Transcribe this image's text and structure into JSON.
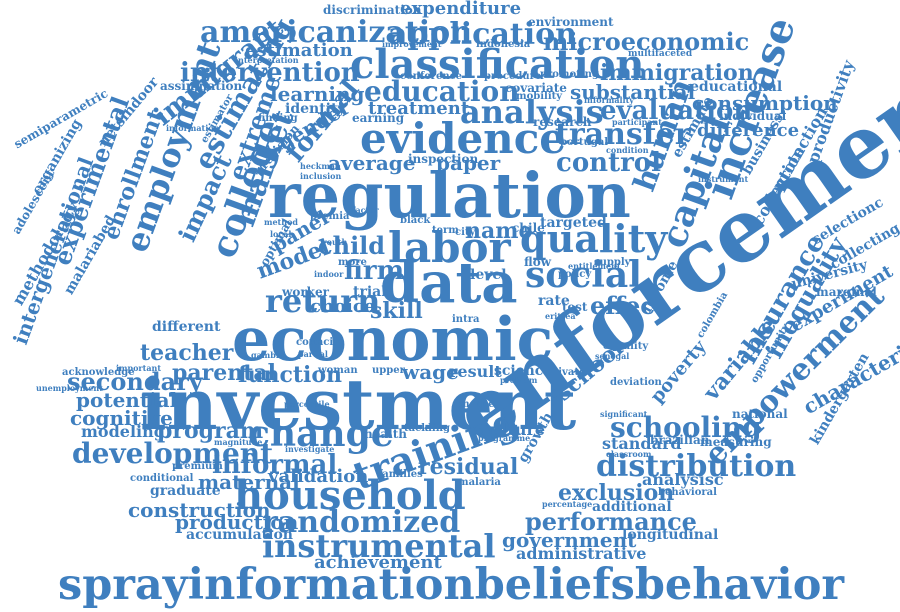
{
  "word_cloud": {
    "color": "#3f7fbf",
    "words": [
      "discrimination",
      "expenditure",
      "environment",
      "americanization",
      "application",
      "indonesia",
      "improvement",
      "multifaceted",
      "microeconomic",
      "classification",
      "estimation",
      "interpretation",
      "intervention",
      "immigration",
      "conference",
      "procedure",
      "promoting",
      "assimilation",
      "education",
      "learning",
      "substantial",
      "educational",
      "consumption",
      "evaluation",
      "immigrant",
      "analysis",
      "treatment",
      "identity",
      "earning",
      "covariate",
      "mobility",
      "informality",
      "individual",
      "finding",
      "research",
      "semiparametric",
      "netsindoor",
      "information",
      "evidence",
      "transfer",
      "difference",
      "estimating",
      "gender",
      "formal",
      "organizing",
      "participant",
      "portugal",
      "condition",
      "productivity",
      "control",
      "average",
      "paper",
      "human",
      "estimate",
      "business",
      "precision",
      "estimator",
      "heckman",
      "extreme",
      "inclusion",
      "regulation",
      "inspection",
      "instrument",
      "protection",
      "adolescent",
      "enrollment",
      "employment",
      "experimental",
      "college",
      "market",
      "impact",
      "premia",
      "factor",
      "capital",
      "increase",
      "collection",
      "child",
      "labor",
      "quality",
      "targeted",
      "selectionc",
      "methodology",
      "intergenerational",
      "method",
      "local",
      "panel",
      "name",
      "chile",
      "collecting",
      "term",
      "city",
      "black",
      "optimal",
      "model",
      "youth",
      "flow",
      "supply",
      "university",
      "malariabed",
      "firm",
      "data",
      "social",
      "entitlement",
      "marginal",
      "return",
      "trial",
      "level",
      "policy",
      "worker",
      "indoor",
      "more",
      "experiment",
      "rate",
      "income",
      "test",
      "insurance",
      "effect",
      "inequality",
      "eritrea",
      "choice",
      "different",
      "skill",
      "conditional",
      "intra",
      "teacher",
      "economic",
      "council",
      "equality",
      "characteristic",
      "colombia",
      "partial",
      "variable",
      "opportunity",
      "senegal",
      "acknowledge",
      "important",
      "gambia",
      "woman",
      "wage",
      "school",
      "upper",
      "result",
      "science",
      "private",
      "secondary",
      "parental",
      "function",
      "unemployment",
      "investment",
      "mother",
      "potential",
      "poverty",
      "enforcement",
      "cognitive",
      "national",
      "deviation",
      "percentile",
      "problem",
      "significant",
      "modeling",
      "change",
      "program",
      "culture",
      "tackling",
      "programme",
      "health",
      "investigate",
      "standard",
      "classroom",
      "schooling",
      "empowerment",
      "magnitude",
      "development",
      "brazilian",
      "measuring",
      "kindergarten",
      "training",
      "informal",
      "premium",
      "growth",
      "distribution",
      "residual",
      "families",
      "validation",
      "maternal",
      "analysisc",
      "malaria",
      "graduate",
      "exclusion",
      "household",
      "behavioral",
      "construction",
      "percentage",
      "additional",
      "performance",
      "production",
      "randomized",
      "accumulation",
      "instrumental",
      "longitudinal",
      "government",
      "administrative",
      "achievement",
      "sprayinformationbeliefsbehavior"
    ]
  }
}
